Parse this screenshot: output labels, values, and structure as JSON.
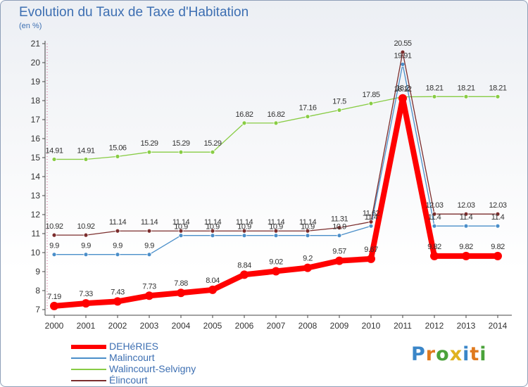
{
  "title": "Evolution du Taux de Taxe d'Habitation",
  "unit_label": "(en %)",
  "logo_text": "Proxiti",
  "chart_data": {
    "type": "line",
    "title": "Evolution du Taux de Taxe d'Habitation",
    "ylabel": "(en %)",
    "xlabel": "",
    "x": [
      "2000",
      "2001",
      "2002",
      "2003",
      "2004",
      "2005",
      "2006",
      "2007",
      "2008",
      "2009",
      "2010",
      "2011",
      "2012",
      "2013",
      "2014"
    ],
    "ylim": [
      7,
      21
    ],
    "yticks": [
      7,
      8,
      9,
      10,
      11,
      12,
      13,
      14,
      15,
      16,
      17,
      18,
      19,
      20,
      21
    ],
    "grid": false,
    "legend_position": "bottom-left",
    "series": [
      {
        "name": "DEHéRIES",
        "color": "#ff0000",
        "values": [
          7.19,
          7.33,
          7.43,
          7.73,
          7.88,
          8.04,
          8.84,
          9.02,
          9.2,
          9.57,
          9.67,
          18.12,
          9.82,
          9.82,
          9.82
        ],
        "labels": [
          "7.19",
          "7.33",
          "7.43",
          "7.73",
          "7.88",
          "8.04",
          "8.84",
          "9.02",
          "9.2",
          "9.57",
          "9.67",
          "18.12",
          "9.82",
          "9.82",
          "9.82"
        ]
      },
      {
        "name": "Malincourt",
        "color": "#4a8ec9",
        "values": [
          9.9,
          9.9,
          9.9,
          9.9,
          10.9,
          10.9,
          10.9,
          10.9,
          10.9,
          10.9,
          11.4,
          19.91,
          11.4,
          11.4,
          11.4
        ],
        "labels": [
          "9.9",
          "9.9",
          "9.9",
          "9.9",
          "10.9",
          "10.9",
          "10.9",
          "10.9",
          "10.9",
          "10.9",
          "11.4",
          "19.91",
          "11.4",
          "11.4",
          "11.4"
        ]
      },
      {
        "name": "Walincourt-Selvigny",
        "color": "#88cc44",
        "values": [
          14.91,
          14.91,
          15.06,
          15.29,
          15.29,
          15.29,
          16.82,
          16.82,
          17.16,
          17.5,
          17.85,
          18.2,
          18.21,
          18.21,
          18.21
        ],
        "labels": [
          "14.91",
          "14.91",
          "15.06",
          "15.29",
          "15.29",
          "15.29",
          "16.82",
          "16.82",
          "17.16",
          "17.5",
          "17.85",
          "18.2",
          "18.21",
          "18.21",
          "18.21"
        ]
      },
      {
        "name": "Élincourt",
        "color": "#7b2d2d",
        "values": [
          10.92,
          10.92,
          11.14,
          11.14,
          11.14,
          11.14,
          11.14,
          11.14,
          11.14,
          11.31,
          11.62,
          20.55,
          12.03,
          12.03,
          12.03
        ],
        "labels": [
          "10.92",
          "10.92",
          "11.14",
          "11.14",
          "11.14",
          "11.14",
          "11.14",
          "11.14",
          "11.14",
          "11.31",
          "11.62",
          "20.55",
          "12.03",
          "12.03",
          "12.03"
        ]
      }
    ]
  }
}
